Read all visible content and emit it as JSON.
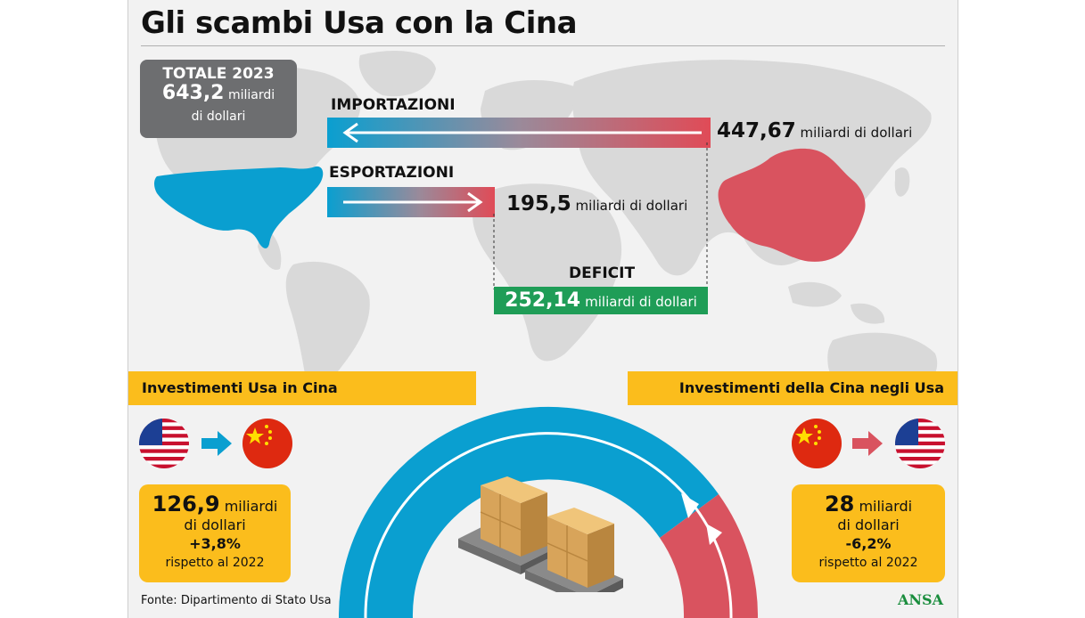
{
  "title": "Gli scambi Usa con la Cina",
  "totale": {
    "heading": "TOTALE 2023",
    "value": "643,2",
    "unit1": "miliardi",
    "unit2": "di dollari"
  },
  "importazioni": {
    "label": "IMPORTAZIONI",
    "value": "447,67",
    "unit": "miliardi di dollari"
  },
  "esportazioni": {
    "label": "ESPORTAZIONI",
    "value": "195,5",
    "unit": "miliardi di dollari"
  },
  "deficit": {
    "label": "DEFICIT",
    "value": "252,14",
    "unit": "miliardi di dollari"
  },
  "invest_usa": {
    "band": "Investimenti Usa in Cina",
    "value": "126,9",
    "unit1": "miliardi",
    "unit2": "di dollari",
    "change": "+3,8%",
    "compare": "rispetto al 2022"
  },
  "invest_cina": {
    "band": "Investimenti della Cina negli Usa",
    "value": "28",
    "unit1": "miliardi",
    "unit2": "di dollari",
    "change": "-6,2%",
    "compare": "rispetto al 2022"
  },
  "footer": {
    "source": "Fonte: Dipartimento di Stato Usa",
    "logo": "ANSA"
  },
  "colors": {
    "usa_blue": "#0a9fd0",
    "china_red": "#d9535f",
    "yellow": "#fbbd1c",
    "green": "#1f9d57",
    "gray_box": "#6d6e70",
    "map_land": "#d9d9d9"
  },
  "icons": [
    "usa-flag-icon",
    "china-flag-icon",
    "arrow-right-icon",
    "pallet-boxes-icon",
    "arc-arrow-icon"
  ]
}
